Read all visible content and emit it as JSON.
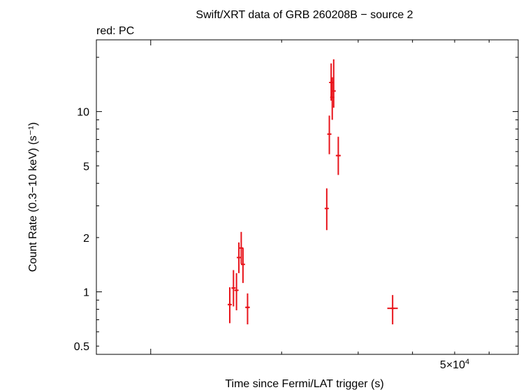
{
  "chart_data": {
    "type": "scatter",
    "title": "Swift/XRT data of GRB 260208B − source 2",
    "subtitle": "red: PC",
    "xlabel": "Time since Fermi/LAT trigger (s)",
    "ylabel": "Count Rate (0.3−10 keV) (s⁻¹)",
    "x_scale": "log",
    "y_scale": "log",
    "xlim": [
      7500,
      70000
    ],
    "ylim": [
      0.45,
      25
    ],
    "x_tick_labels": [
      {
        "value": 50000,
        "mantissa": "5×10",
        "exponent": "4"
      }
    ],
    "y_tick_labels": [
      {
        "value": 0.5,
        "label": "0.5"
      },
      {
        "value": 1,
        "label": "1"
      },
      {
        "value": 2,
        "label": "2"
      },
      {
        "value": 5,
        "label": "5"
      },
      {
        "value": 10,
        "label": "10"
      }
    ],
    "color": "#e8141b",
    "series": [
      {
        "points": [
          {
            "x": 15200,
            "xerr": [
              100,
              100
            ],
            "y": 0.85,
            "yerr": [
              0.67,
              1.06
            ]
          },
          {
            "x": 15500,
            "xerr": [
              90,
              90
            ],
            "y": 1.05,
            "yerr": [
              0.83,
              1.32
            ]
          },
          {
            "x": 15750,
            "xerr": [
              90,
              90
            ],
            "y": 1.02,
            "yerr": [
              0.79,
              1.27
            ]
          },
          {
            "x": 15950,
            "xerr": [
              90,
              90
            ],
            "y": 1.55,
            "yerr": [
              1.27,
              1.88
            ]
          },
          {
            "x": 16150,
            "xerr": [
              80,
              80
            ],
            "y": 1.75,
            "yerr": [
              1.43,
              2.15
            ]
          },
          {
            "x": 16300,
            "xerr": [
              80,
              80
            ],
            "y": 1.42,
            "yerr": [
              1.12,
              1.75
            ]
          },
          {
            "x": 16700,
            "xerr": [
              200,
              200
            ],
            "y": 0.82,
            "yerr": [
              0.66,
              0.98
            ]
          },
          {
            "x": 25400,
            "xerr": [
              80,
              80
            ],
            "y": 2.9,
            "yerr": [
              2.2,
              3.75
            ]
          },
          {
            "x": 25750,
            "xerr": [
              80,
              80
            ],
            "y": 7.5,
            "yerr": [
              5.8,
              9.5
            ]
          },
          {
            "x": 26000,
            "xerr": [
              70,
              70
            ],
            "y": 14.5,
            "yerr": [
              11.5,
              18.5
            ]
          },
          {
            "x": 26150,
            "xerr": [
              70,
              70
            ],
            "y": 12.0,
            "yerr": [
              9.0,
              15.5
            ]
          },
          {
            "x": 26350,
            "xerr": [
              70,
              70
            ],
            "y": 13.0,
            "yerr": [
              10.5,
              19.5
            ]
          },
          {
            "x": 27000,
            "xerr": [
              350,
              350
            ],
            "y": 5.7,
            "yerr": [
              4.45,
              7.25
            ]
          },
          {
            "x": 36000,
            "xerr": [
              1000,
              1000
            ],
            "y": 0.81,
            "yerr": [
              0.66,
              0.96
            ]
          }
        ]
      }
    ]
  }
}
